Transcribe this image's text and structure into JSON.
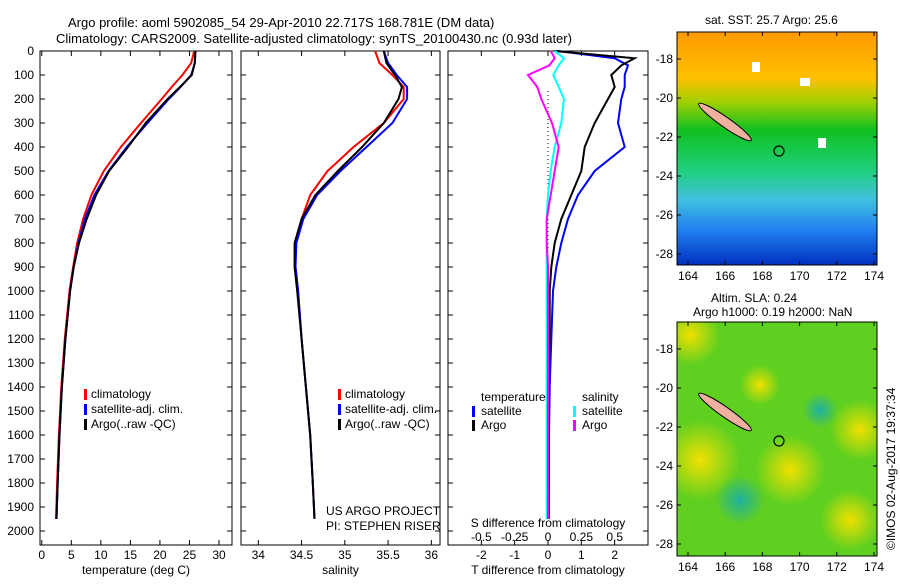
{
  "title_line1": "Argo profile: aoml 5902085_54 29-Apr-2010 22.717S 168.781E (DM data)",
  "title_line2": "Climatology: CARS2009. Satellite-adjusted climatology: synTS_20100430.nc (0.93d later)",
  "credit": "©IMOS 02-Aug-2017 19:37:34",
  "project": {
    "line1": "US ARGO PROJECT",
    "line2": "PI: STEPHEN RISER"
  },
  "colors": {
    "climatology": "#ff0000",
    "satellite": "#0000ff",
    "argo": "#000000",
    "s_satellite": "#00ffff",
    "s_argo": "#ff00ff"
  },
  "chart_data": [
    {
      "type": "line",
      "name": "temperature",
      "xlabel": "temperature (deg C)",
      "ylabel": "depth",
      "xlim": [
        -0.3,
        32.2
      ],
      "ylim": [
        0,
        2060
      ],
      "xticks": [
        0,
        5,
        10,
        15,
        20,
        25,
        30
      ],
      "yticks": [
        0,
        100,
        200,
        300,
        400,
        500,
        600,
        700,
        800,
        900,
        1000,
        1100,
        1200,
        1300,
        1400,
        1500,
        1600,
        1700,
        1800,
        1900,
        2000
      ],
      "legend": [
        "climatology",
        "satellite-adj. clim.",
        "Argo(..raw -QC)"
      ],
      "depth": [
        0,
        50,
        100,
        150,
        200,
        300,
        400,
        500,
        600,
        700,
        800,
        900,
        1000,
        1200,
        1400,
        1600,
        1800,
        1950
      ],
      "series": [
        {
          "name": "climatology",
          "values": [
            25.8,
            25.3,
            23.8,
            22,
            20.3,
            16.8,
            13.4,
            10.5,
            8.4,
            7.0,
            6.0,
            5.3,
            4.7,
            3.9,
            3.3,
            2.9,
            2.6,
            2.4
          ]
        },
        {
          "name": "satellite-adj. clim.",
          "values": [
            26,
            25.9,
            25.3,
            23.5,
            21.5,
            17.9,
            14.4,
            11.3,
            8.9,
            7.3,
            6.2,
            5.4,
            4.8,
            4.0,
            3.4,
            3.0,
            2.7,
            2.5
          ]
        },
        {
          "name": "Argo(..raw -QC)",
          "values": [
            26,
            25.9,
            25.4,
            23.4,
            21.3,
            17.6,
            14.6,
            11.4,
            9.2,
            7.6,
            6.3,
            5.4,
            4.8,
            4.0,
            3.4,
            3.0,
            2.7,
            2.5
          ]
        }
      ]
    },
    {
      "type": "line",
      "name": "salinity",
      "xlabel": "salinity",
      "xlim": [
        33.8,
        36.1
      ],
      "ylim": [
        0,
        2060
      ],
      "xticks": [
        34,
        34.5,
        35,
        35.5,
        36
      ],
      "legend": [
        "climatology",
        "satellite-adj. clim.",
        "Argo(..raw -QC)"
      ],
      "depth": [
        0,
        50,
        100,
        150,
        200,
        300,
        400,
        500,
        600,
        700,
        800,
        900,
        1000,
        1200,
        1400,
        1600,
        1800,
        1950
      ],
      "series": [
        {
          "name": "climatology",
          "values": [
            35.35,
            35.4,
            35.55,
            35.68,
            35.68,
            35.45,
            35.1,
            34.8,
            34.6,
            34.5,
            34.43,
            34.43,
            34.46,
            34.5,
            34.55,
            34.6,
            34.63,
            34.65
          ]
        },
        {
          "name": "satellite-adj. clim.",
          "values": [
            35.45,
            35.5,
            35.6,
            35.72,
            35.72,
            35.55,
            35.25,
            34.95,
            34.68,
            34.52,
            34.44,
            34.43,
            34.46,
            34.5,
            34.55,
            34.6,
            34.63,
            34.65
          ]
        },
        {
          "name": "Argo(..raw -QC)",
          "values": [
            35.45,
            35.48,
            35.58,
            35.66,
            35.62,
            35.45,
            35.2,
            34.92,
            34.66,
            34.5,
            34.42,
            34.42,
            34.45,
            34.5,
            34.55,
            34.6,
            34.63,
            34.65
          ]
        }
      ]
    },
    {
      "type": "line",
      "name": "difference",
      "xlabel": "T difference from climatology",
      "x2label": "S difference from climatology",
      "xlim": [
        -3,
        3
      ],
      "ylim": [
        0,
        2060
      ],
      "xticks": [
        -2,
        -1,
        0,
        1,
        2
      ],
      "x2ticks": [
        "-0.5",
        "-0.25",
        "0",
        "0.25",
        "0.5"
      ],
      "legend_titles": [
        "temperature",
        "salinity"
      ],
      "legend": [
        "satellite",
        "Argo",
        "satellite",
        "Argo"
      ],
      "depth": [
        0,
        30,
        60,
        100,
        150,
        200,
        300,
        400,
        500,
        600,
        700,
        800,
        900,
        1000,
        1200,
        1400,
        1600,
        1800,
        1950
      ],
      "series": [
        {
          "name": "T satellite",
          "values": [
            0.3,
            2.0,
            2.4,
            2.3,
            2.3,
            2.2,
            2.1,
            2.3,
            1.4,
            0.9,
            0.6,
            0.4,
            0.25,
            0.15,
            0.1,
            0.05,
            0.03,
            0.03,
            0.02
          ]
        },
        {
          "name": "T Argo",
          "values": [
            0.2,
            2.6,
            2.2,
            1.9,
            2.0,
            1.8,
            1.4,
            1.1,
            1.0,
            0.7,
            0.4,
            0.2,
            0.1,
            0.05,
            0.05,
            0.02,
            0.02,
            0.02,
            0.02
          ]
        },
        {
          "name": "S satellite",
          "values": [
            0.05,
            0.12,
            0.08,
            0.04,
            0.08,
            0.12,
            0.1,
            0.05,
            0.02,
            0.0,
            -0.01,
            -0.01,
            -0.01,
            -0.01,
            -0.01,
            -0.01,
            -0.01,
            -0.01,
            -0.01
          ]
        },
        {
          "name": "S Argo",
          "values": [
            0.02,
            0.05,
            0.01,
            -0.15,
            -0.08,
            -0.05,
            0.03,
            0.08,
            0.05,
            0.02,
            -0.01,
            -0.01,
            0.0,
            0.0,
            0.0,
            0.0,
            0.0,
            0.0,
            0.0
          ]
        }
      ]
    },
    {
      "type": "heatmap",
      "name": "sst-map",
      "title": "sat. SST: 25.7 Argo: 25.6",
      "xticks": [
        164,
        166,
        168,
        170,
        172,
        174
      ],
      "yticks": [
        -18,
        -20,
        -22,
        -24,
        -26,
        -28
      ],
      "marker": [
        168.781,
        -22.717
      ]
    },
    {
      "type": "heatmap",
      "name": "sla-map",
      "title1": "Altim. SLA: 0.24",
      "title2": "Argo h1000: 0.19 h2000: NaN",
      "xticks": [
        164,
        166,
        168,
        170,
        172,
        174
      ],
      "yticks": [
        -18,
        -20,
        -22,
        -24,
        -26,
        -28
      ],
      "marker": [
        168.781,
        -22.717
      ]
    }
  ]
}
